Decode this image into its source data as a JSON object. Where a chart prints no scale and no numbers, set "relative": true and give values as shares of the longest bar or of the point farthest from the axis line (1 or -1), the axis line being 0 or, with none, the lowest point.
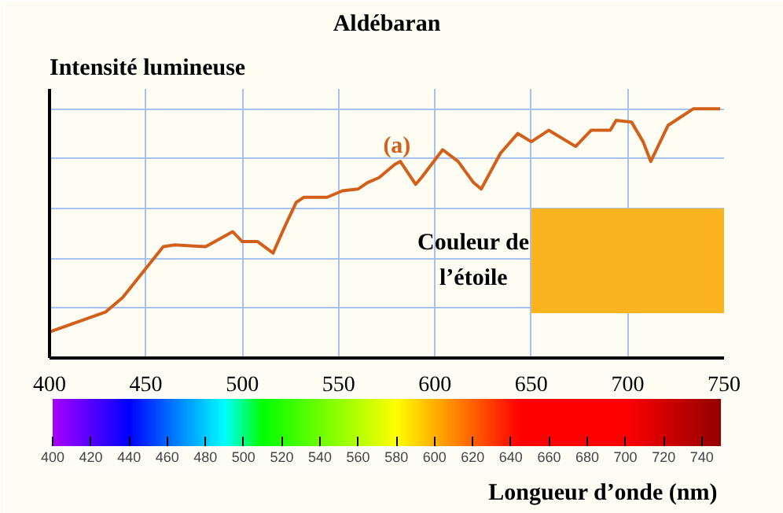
{
  "chart_data": {
    "type": "line",
    "title": "Aldébaran",
    "ylabel": "Intensité lumineuse",
    "xlabel": "Longueur d’onde (nm)",
    "relative": true,
    "x": [
      400,
      429,
      438,
      459,
      465,
      481,
      495,
      500,
      508,
      516,
      522,
      528,
      532,
      544,
      552,
      560,
      565,
      571,
      579,
      582,
      590,
      593,
      604,
      612,
      620,
      624,
      634,
      643,
      650,
      659,
      673,
      681,
      691,
      694,
      702,
      708,
      712,
      721,
      734,
      748
    ],
    "series": [
      {
        "color": "#d2601a",
        "values": [
          0.105,
          0.184,
          0.243,
          0.447,
          0.454,
          0.447,
          0.507,
          0.467,
          0.467,
          0.421,
          0.526,
          0.625,
          0.645,
          0.645,
          0.671,
          0.678,
          0.704,
          0.724,
          0.776,
          0.789,
          0.697,
          0.724,
          0.836,
          0.789,
          0.704,
          0.678,
          0.822,
          0.901,
          0.868,
          0.914,
          0.849,
          0.914,
          0.914,
          0.954,
          0.947,
          0.868,
          0.789,
          0.934,
          1,
          1
        ]
      }
    ],
    "xlim": [
      400,
      750
    ],
    "xticks": [
      400,
      450,
      500,
      550,
      600,
      650,
      700,
      750
    ],
    "clim": [
      400,
      750
    ],
    "cticks": [
      400,
      420,
      440,
      460,
      480,
      500,
      520,
      540,
      560,
      580,
      600,
      620,
      640,
      660,
      680,
      700,
      720,
      740
    ],
    "grid": true,
    "line_style": "solid",
    "annotations": [
      "(a)"
    ],
    "bands": [
      {
        "axis": "x",
        "from": 650,
        "to": 750,
        "label": "Couleur de l’étoile",
        "color": "#fbb320"
      }
    ]
  }
}
